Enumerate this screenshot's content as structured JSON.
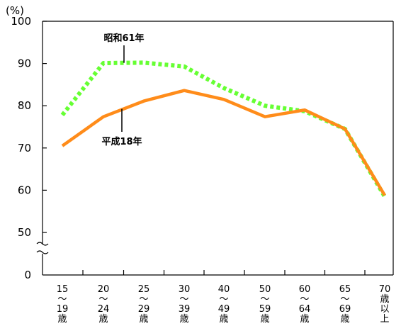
{
  "chart_data": {
    "type": "line",
    "ylabel": "(%)",
    "y_ticks": [
      "100",
      "90",
      "80",
      "70",
      "60",
      "50",
      "0"
    ],
    "ylim_upper": [
      50,
      100
    ],
    "axis_break": true,
    "categories": [
      [
        "15",
        "〜",
        "19",
        "歳"
      ],
      [
        "20",
        "〜",
        "24",
        "歳"
      ],
      [
        "25",
        "〜",
        "29",
        "歳"
      ],
      [
        "30",
        "〜",
        "39",
        "歳"
      ],
      [
        "40",
        "〜",
        "49",
        "歳"
      ],
      [
        "50",
        "〜",
        "59",
        "歳"
      ],
      [
        "60",
        "〜",
        "64",
        "歳"
      ],
      [
        "65",
        "〜",
        "69",
        "歳"
      ],
      [
        "70",
        "歳",
        "以",
        "上"
      ]
    ],
    "series": [
      {
        "name": "昭和61年",
        "color": "#66ff33",
        "style": "dotted",
        "values": [
          77.8,
          90.1,
          90.2,
          89.3,
          84.2,
          80.0,
          78.7,
          74.5,
          58.5
        ]
      },
      {
        "name": "平成18年",
        "color": "#ff8c1a",
        "style": "solid",
        "values": [
          70.5,
          77.4,
          81.1,
          83.6,
          81.5,
          77.4,
          79.0,
          74.5,
          58.8
        ]
      }
    ]
  }
}
